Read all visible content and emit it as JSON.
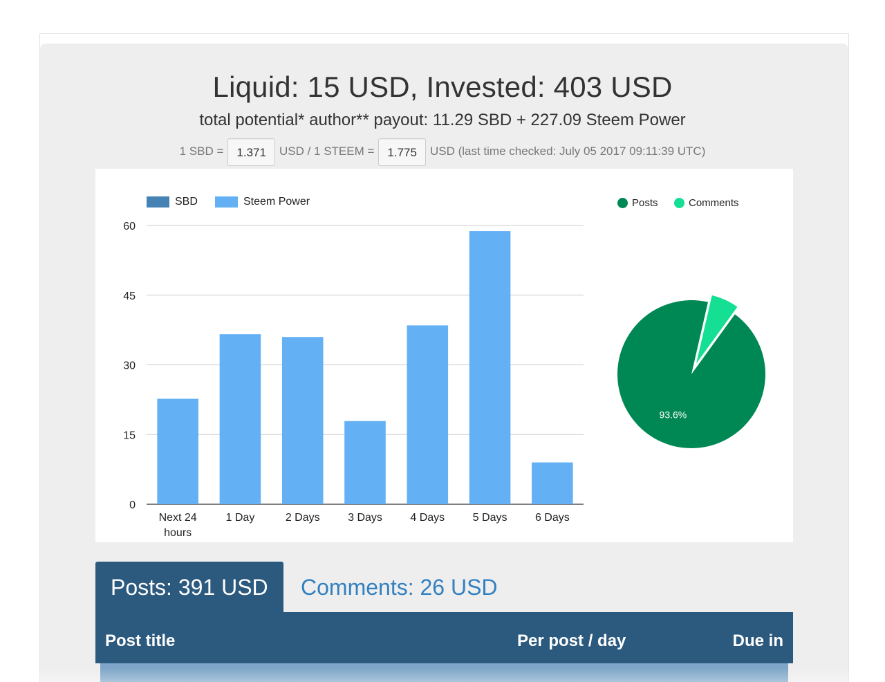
{
  "summary": {
    "headline": "Liquid: 15 USD, Invested: 403 USD",
    "payout": "total potential* author** payout: 11.29 SBD + 227.09 Steem Power"
  },
  "rates": {
    "sbd_prefix": "1 SBD =",
    "sbd_value": "1.371",
    "steem_prefix": "USD / 1 STEEM =",
    "steem_value": "1.775",
    "checked_suffix": "USD (last time checked: July 05 2017 09:11:39 UTC)"
  },
  "colors": {
    "sbd": "#4682b4",
    "steem_power": "#64b0f5",
    "posts": "#008854",
    "comments": "#14df93",
    "tab": "#2c5a7f",
    "link": "#3380c0"
  },
  "chart_data": [
    {
      "type": "bar",
      "stacked": true,
      "categories": [
        "Next 24 hours",
        "1 Day",
        "2 Days",
        "3 Days",
        "4 Days",
        "5 Days",
        "6 Days"
      ],
      "series": [
        {
          "name": "SBD",
          "values": [
            0,
            0,
            0,
            0,
            0,
            0,
            0
          ]
        },
        {
          "name": "Steem Power",
          "values": [
            22.7,
            36.6,
            36.0,
            17.9,
            38.5,
            58.8,
            9.0
          ]
        }
      ],
      "ylim": [
        0,
        60
      ],
      "yticks": [
        "0",
        "15",
        "30",
        "45",
        "60"
      ],
      "grid": true,
      "legend": "top-left"
    },
    {
      "type": "pie",
      "labels": [
        "Posts",
        "Comments"
      ],
      "values": [
        93.6,
        6.4
      ],
      "slice_labels": [
        "93.6%",
        ""
      ],
      "legend": "top"
    }
  ],
  "tabs": [
    {
      "label": "Posts: 391 USD",
      "active": true
    },
    {
      "label": "Comments: 26 USD",
      "active": false
    }
  ],
  "table": {
    "columns": [
      "Post title",
      "Per post / day",
      "Due in"
    ]
  }
}
